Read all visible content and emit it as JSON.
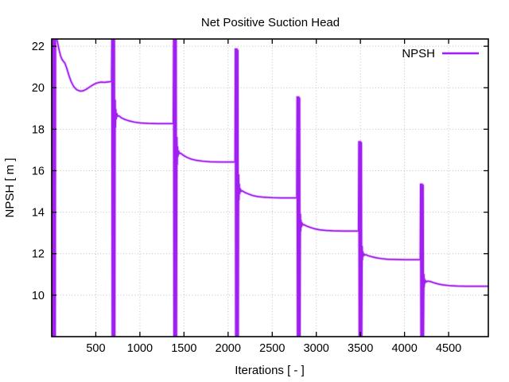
{
  "chart_data": {
    "type": "line",
    "title": "Net Positive Suction Head",
    "xlabel": "Iterations [ - ]",
    "ylabel": "NPSH [ m ]",
    "xlim": [
      0,
      4950
    ],
    "ylim": [
      8.0,
      22.35
    ],
    "x_ticks": [
      500,
      1000,
      1500,
      2000,
      2500,
      3000,
      3500,
      4000,
      4500
    ],
    "y_ticks": [
      10,
      12,
      14,
      16,
      18,
      20,
      22
    ],
    "grid": true,
    "grid_color": "#bfbfbf",
    "frame_color": "#000000",
    "background_color": "#ffffff",
    "legend": {
      "position": "top-right",
      "box": false
    },
    "series": [
      {
        "name": "NPSH",
        "color": "#A020F0",
        "points": [
          [
            0,
            22.35
          ],
          [
            4,
            8
          ],
          [
            9,
            22.35
          ],
          [
            13,
            8
          ],
          [
            18,
            22.35
          ],
          [
            22,
            8
          ],
          [
            27,
            22.35
          ],
          [
            31,
            8
          ],
          [
            36,
            22.35
          ],
          [
            40,
            8
          ],
          [
            44,
            22.35
          ],
          [
            58,
            22.35
          ],
          [
            70,
            22.1
          ],
          [
            85,
            21.8
          ],
          [
            100,
            21.55
          ],
          [
            115,
            21.38
          ],
          [
            132,
            21.28
          ],
          [
            150,
            21.18
          ],
          [
            170,
            20.95
          ],
          [
            195,
            20.6
          ],
          [
            220,
            20.3
          ],
          [
            250,
            20.05
          ],
          [
            285,
            19.9
          ],
          [
            320,
            19.84
          ],
          [
            355,
            19.85
          ],
          [
            390,
            19.92
          ],
          [
            425,
            20.02
          ],
          [
            460,
            20.12
          ],
          [
            495,
            20.2
          ],
          [
            530,
            20.25
          ],
          [
            565,
            20.27
          ],
          [
            600,
            20.26
          ],
          [
            640,
            20.28
          ],
          [
            678,
            20.3
          ],
          [
            682,
            22.35
          ],
          [
            686,
            8
          ],
          [
            691,
            22.35
          ],
          [
            696,
            8
          ],
          [
            701,
            22.35
          ],
          [
            706,
            8
          ],
          [
            711,
            22.35
          ],
          [
            715,
            8
          ],
          [
            718,
            16
          ],
          [
            720,
            19.4
          ],
          [
            723,
            18.1
          ],
          [
            727,
            18.95
          ],
          [
            732,
            18.5
          ],
          [
            739,
            18.75
          ],
          [
            748,
            18.62
          ],
          [
            760,
            18.65
          ],
          [
            790,
            18.55
          ],
          [
            830,
            18.47
          ],
          [
            880,
            18.4
          ],
          [
            940,
            18.34
          ],
          [
            1010,
            18.3
          ],
          [
            1100,
            18.28
          ],
          [
            1200,
            18.27
          ],
          [
            1300,
            18.27
          ],
          [
            1378,
            18.27
          ],
          [
            1382,
            22.35
          ],
          [
            1386,
            8
          ],
          [
            1391,
            22.35
          ],
          [
            1396,
            8
          ],
          [
            1401,
            22.35
          ],
          [
            1406,
            8
          ],
          [
            1411,
            22.35
          ],
          [
            1415,
            8
          ],
          [
            1418,
            14.5
          ],
          [
            1420,
            17.6
          ],
          [
            1423,
            16.3
          ],
          [
            1427,
            17.15
          ],
          [
            1432,
            16.7
          ],
          [
            1439,
            16.95
          ],
          [
            1448,
            16.82
          ],
          [
            1460,
            16.85
          ],
          [
            1490,
            16.75
          ],
          [
            1530,
            16.65
          ],
          [
            1580,
            16.56
          ],
          [
            1640,
            16.5
          ],
          [
            1710,
            16.46
          ],
          [
            1800,
            16.43
          ],
          [
            1900,
            16.42
          ],
          [
            2000,
            16.42
          ],
          [
            2078,
            16.42
          ],
          [
            2082,
            21.87
          ],
          [
            2086,
            8
          ],
          [
            2091,
            21.87
          ],
          [
            2096,
            8
          ],
          [
            2101,
            21.87
          ],
          [
            2106,
            8
          ],
          [
            2111,
            21.8
          ],
          [
            2115,
            8
          ],
          [
            2118,
            13.8
          ],
          [
            2120,
            15.8
          ],
          [
            2123,
            14.6
          ],
          [
            2127,
            15.35
          ],
          [
            2132,
            14.9
          ],
          [
            2139,
            15.12
          ],
          [
            2148,
            15.0
          ],
          [
            2160,
            15.03
          ],
          [
            2190,
            14.95
          ],
          [
            2230,
            14.88
          ],
          [
            2280,
            14.8
          ],
          [
            2340,
            14.75
          ],
          [
            2410,
            14.72
          ],
          [
            2500,
            14.7
          ],
          [
            2600,
            14.69
          ],
          [
            2700,
            14.69
          ],
          [
            2778,
            14.69
          ],
          [
            2782,
            19.55
          ],
          [
            2786,
            8
          ],
          [
            2791,
            19.55
          ],
          [
            2796,
            8
          ],
          [
            2801,
            19.55
          ],
          [
            2806,
            8
          ],
          [
            2811,
            19.5
          ],
          [
            2815,
            8
          ],
          [
            2818,
            12.5
          ],
          [
            2820,
            13.9
          ],
          [
            2823,
            13.1
          ],
          [
            2827,
            13.6
          ],
          [
            2832,
            13.3
          ],
          [
            2839,
            13.48
          ],
          [
            2848,
            13.38
          ],
          [
            2860,
            13.4
          ],
          [
            2890,
            13.33
          ],
          [
            2930,
            13.27
          ],
          [
            2980,
            13.2
          ],
          [
            3040,
            13.15
          ],
          [
            3110,
            13.12
          ],
          [
            3200,
            13.1
          ],
          [
            3300,
            13.09
          ],
          [
            3400,
            13.09
          ],
          [
            3478,
            13.09
          ],
          [
            3482,
            17.4
          ],
          [
            3486,
            8
          ],
          [
            3491,
            17.4
          ],
          [
            3496,
            8
          ],
          [
            3501,
            17.4
          ],
          [
            3506,
            8
          ],
          [
            3511,
            17.35
          ],
          [
            3515,
            8
          ],
          [
            3518,
            11.2
          ],
          [
            3520,
            12.35
          ],
          [
            3523,
            11.7
          ],
          [
            3527,
            12.1
          ],
          [
            3532,
            11.88
          ],
          [
            3539,
            12.0
          ],
          [
            3548,
            11.93
          ],
          [
            3560,
            11.95
          ],
          [
            3590,
            11.9
          ],
          [
            3630,
            11.85
          ],
          [
            3680,
            11.8
          ],
          [
            3740,
            11.76
          ],
          [
            3810,
            11.73
          ],
          [
            3900,
            11.72
          ],
          [
            4000,
            11.71
          ],
          [
            4100,
            11.71
          ],
          [
            4178,
            11.71
          ],
          [
            4182,
            15.35
          ],
          [
            4186,
            8
          ],
          [
            4191,
            15.35
          ],
          [
            4196,
            8
          ],
          [
            4201,
            15.35
          ],
          [
            4206,
            8
          ],
          [
            4211,
            15.3
          ],
          [
            4215,
            8
          ],
          [
            4218,
            9.9
          ],
          [
            4220,
            11.0
          ],
          [
            4223,
            10.4
          ],
          [
            4227,
            10.78
          ],
          [
            4232,
            10.58
          ],
          [
            4239,
            10.7
          ],
          [
            4248,
            10.64
          ],
          [
            4260,
            10.68
          ],
          [
            4290,
            10.66
          ],
          [
            4330,
            10.6
          ],
          [
            4380,
            10.54
          ],
          [
            4440,
            10.49
          ],
          [
            4510,
            10.46
          ],
          [
            4600,
            10.44
          ],
          [
            4700,
            10.43
          ],
          [
            4800,
            10.43
          ],
          [
            4900,
            10.43
          ],
          [
            4950,
            10.43
          ]
        ]
      }
    ]
  }
}
